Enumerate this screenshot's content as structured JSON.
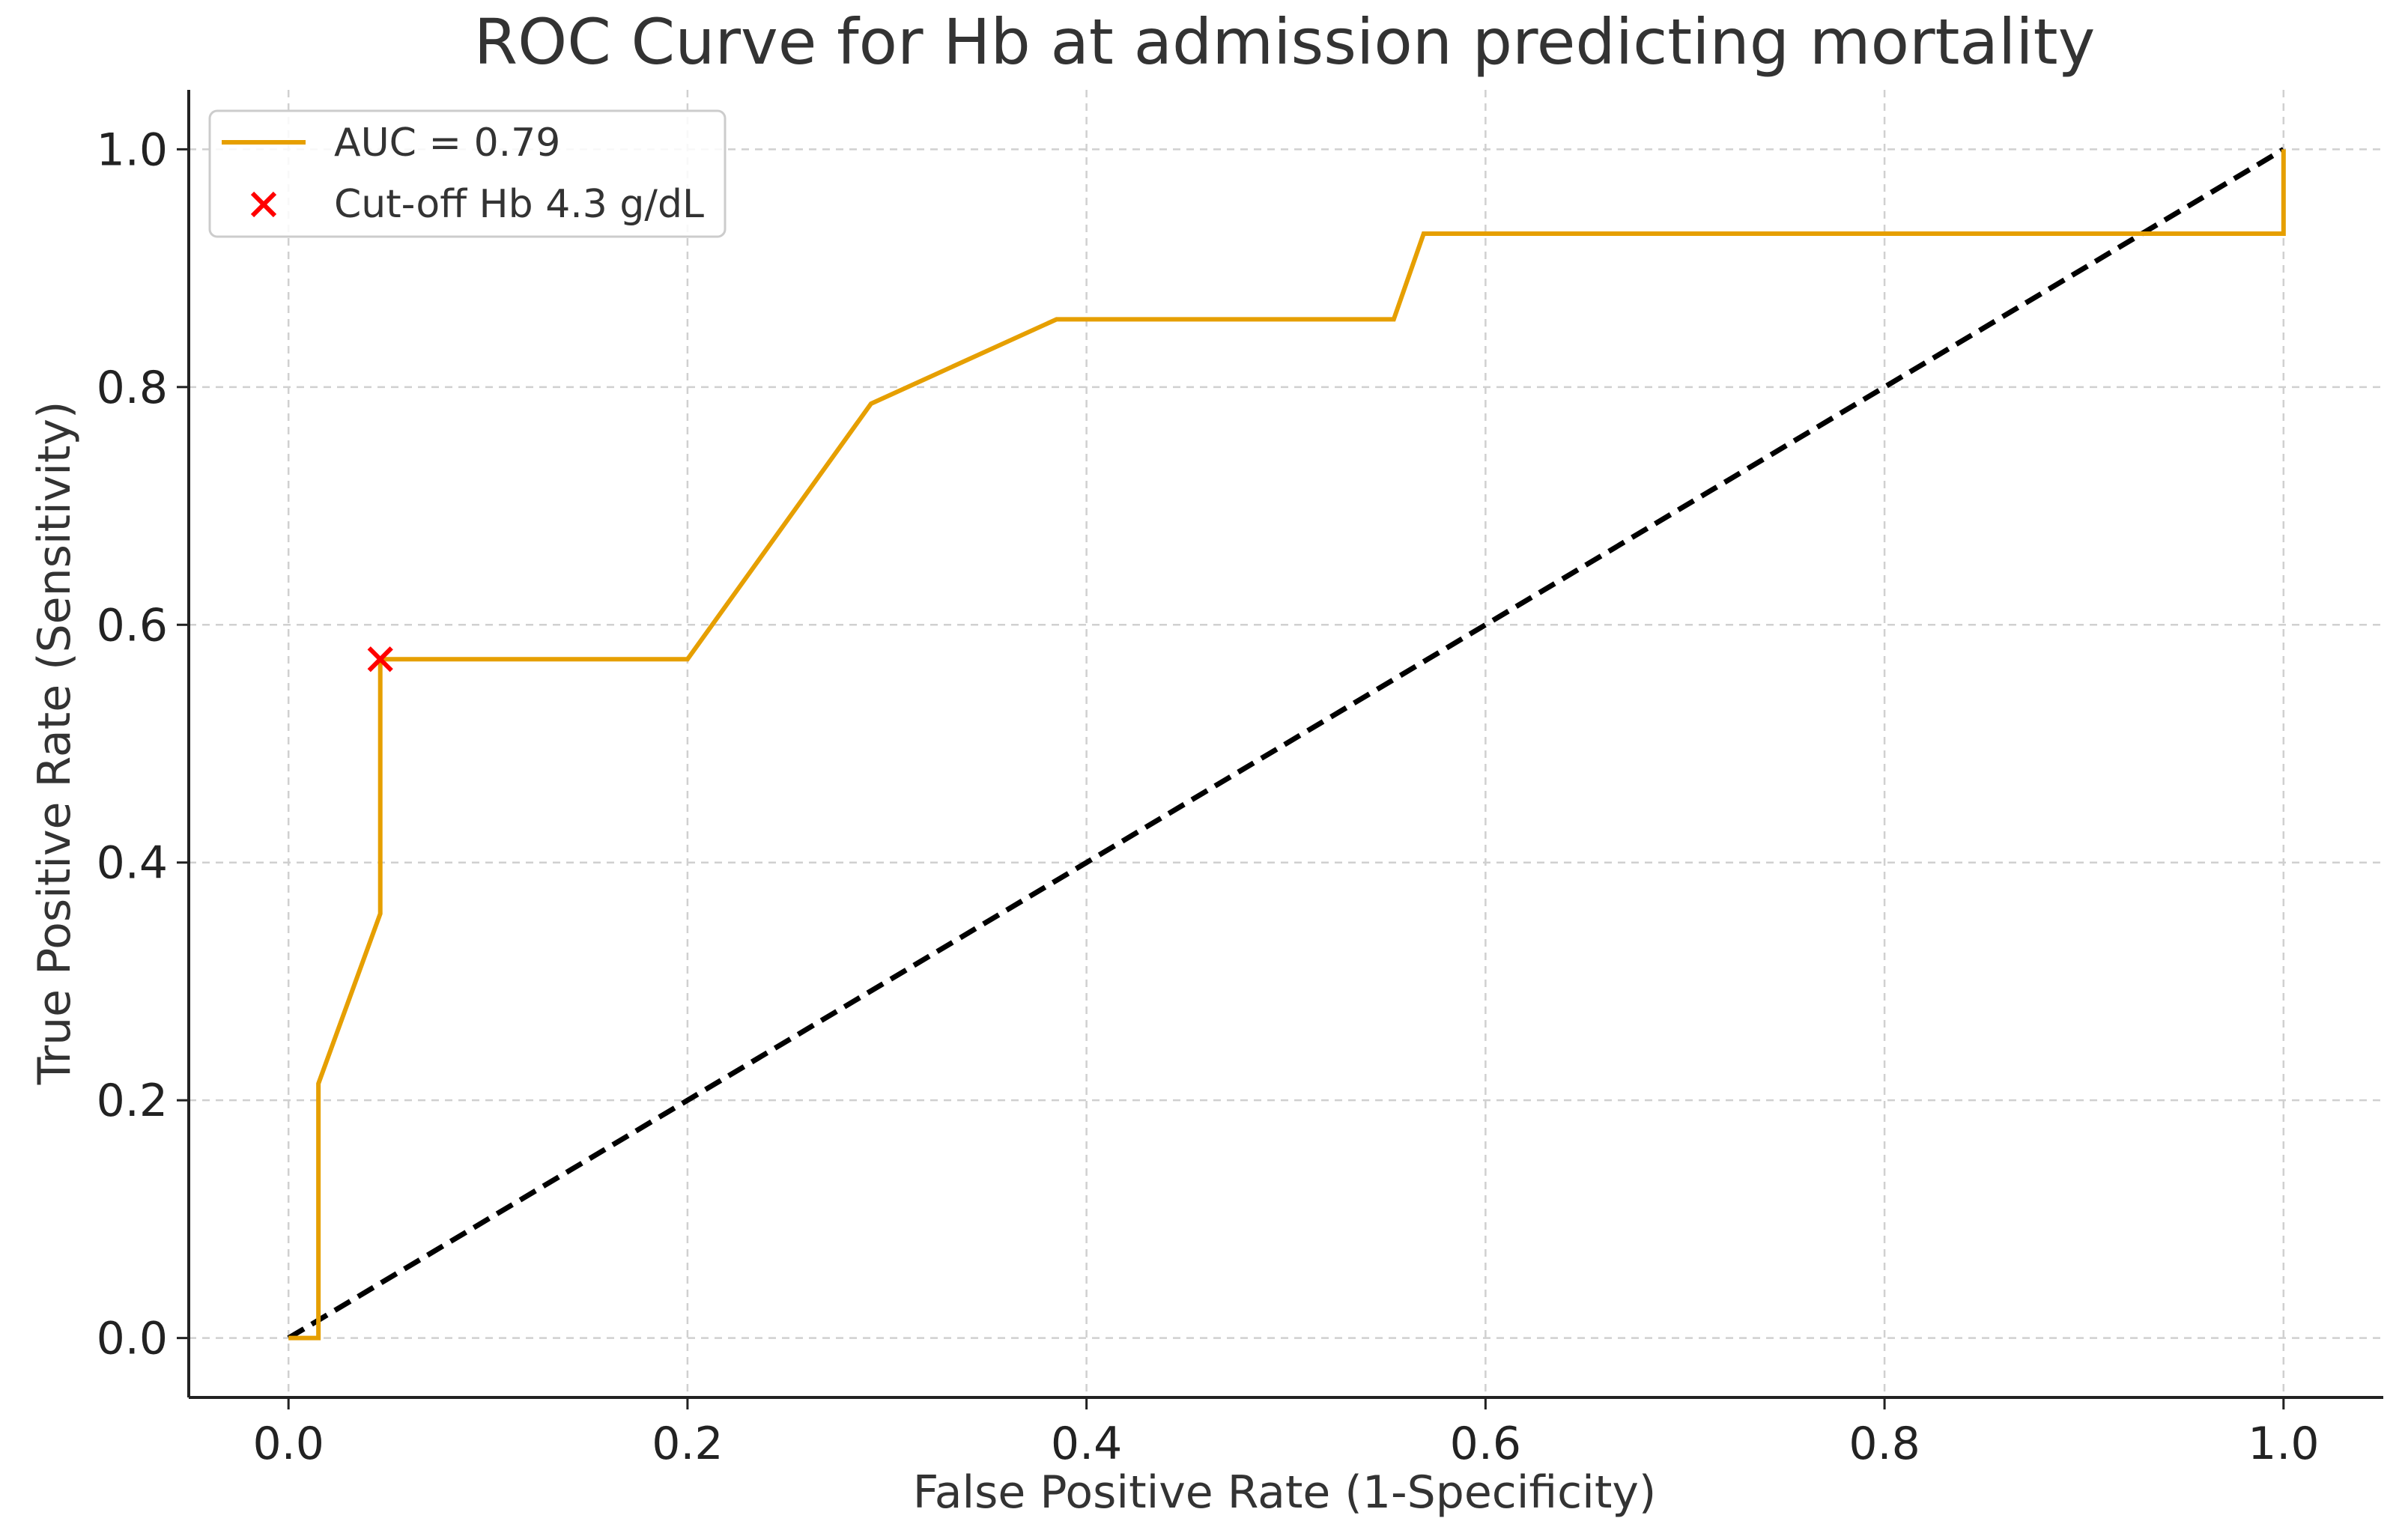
{
  "chart_data": {
    "type": "line",
    "title": "ROC Curve for Hb at admission predicting mortality",
    "xlabel": "False Positive Rate (1-Specificity)",
    "ylabel": "True Positive Rate (Sensitivity)",
    "xlim": [
      -0.05,
      1.05
    ],
    "ylim": [
      -0.05,
      1.05
    ],
    "x_ticks": [
      "0.0",
      "0.2",
      "0.4",
      "0.6",
      "0.8",
      "1.0"
    ],
    "y_ticks": [
      "0.0",
      "0.2",
      "0.4",
      "0.6",
      "0.8",
      "1.0"
    ],
    "grid": true,
    "legend_position": "top-left",
    "series": [
      {
        "name": "AUC = 0.79",
        "color": "#E69F00",
        "x": [
          0.0,
          0.015,
          0.015,
          0.046,
          0.046,
          0.2,
          0.292,
          0.385,
          0.554,
          0.569,
          1.0,
          1.0
        ],
        "y": [
          0.0,
          0.0,
          0.214,
          0.357,
          0.571,
          0.571,
          0.786,
          0.857,
          0.857,
          0.929,
          0.929,
          1.0
        ]
      },
      {
        "type": "reference-line",
        "style": "dashed",
        "color": "#000000",
        "x": [
          0.0,
          1.0
        ],
        "y": [
          0.0,
          1.0
        ]
      }
    ],
    "markers": [
      {
        "name": "Cut-off Hb 4.3 g/dL",
        "marker": "x",
        "color": "#FF0000",
        "x": 0.046,
        "y": 0.571
      }
    ]
  }
}
